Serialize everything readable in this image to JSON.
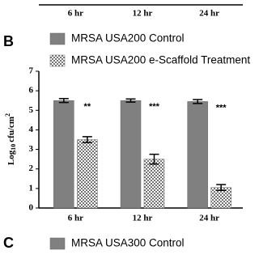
{
  "chart_data": [
    {
      "type": "bar",
      "categories": [
        "6 hr",
        "12 hr",
        "24 hr"
      ]
    },
    {
      "type": "bar",
      "panel_label": "B",
      "categories": [
        "6 hr",
        "12 hr",
        "24 hr"
      ],
      "series": [
        {
          "name": "MRSA USA200 Control",
          "color": "#808080",
          "pattern": "solid",
          "values": [
            5.5,
            5.5,
            5.45
          ],
          "errors": [
            0.1,
            0.08,
            0.1
          ]
        },
        {
          "name": "MRSA USA200 e-Scaffold Treatment",
          "color": "#ffffff",
          "pattern": "checker",
          "values": [
            3.5,
            2.5,
            1.05
          ],
          "errors": [
            0.15,
            0.25,
            0.15
          ]
        }
      ],
      "annotations": [
        "**",
        "***",
        "***"
      ],
      "annotation_color": "#e03030",
      "ylabel_parts": [
        "Log",
        "10",
        "cfu/cm",
        "2"
      ],
      "ylim": [
        0,
        7
      ],
      "yticks": [
        0,
        1,
        2,
        3,
        4,
        5,
        6,
        7
      ]
    },
    {
      "type": "bar",
      "panel_label": "C",
      "series": [
        {
          "name": "MRSA USA300 Control",
          "color": "#808080",
          "pattern": "solid"
        }
      ]
    }
  ]
}
